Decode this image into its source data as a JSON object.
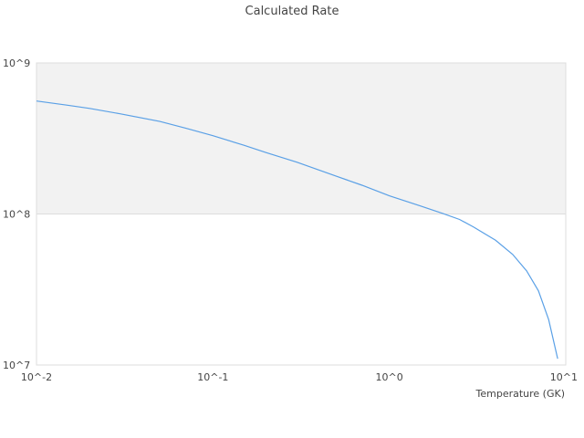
{
  "chart_data": {
    "type": "line",
    "title": "Calculated Rate",
    "xlabel": "Temperature (GK)",
    "ylabel": "",
    "x_scale": "log",
    "y_scale": "log",
    "xlim": [
      0.01,
      10
    ],
    "ylim": [
      10000000,
      1000000000
    ],
    "x_tick_labels": [
      "10^-2",
      "10^-1",
      "10^0",
      "10^1"
    ],
    "y_tick_labels": [
      "10^9",
      "10^8",
      "10^7"
    ],
    "shaded_band": {
      "y_from": 100000000,
      "y_to": 1000000000,
      "color": "#f2f2f2"
    },
    "series": [
      {
        "color": "#5aa0e6",
        "x": [
          0.01,
          0.015,
          0.02,
          0.03,
          0.05,
          0.07,
          0.1,
          0.15,
          0.2,
          0.3,
          0.5,
          0.7,
          1.0,
          1.5,
          2.0,
          2.5,
          3.0,
          4.0,
          5.0,
          6.0,
          7.0,
          8.0,
          9.0
        ],
        "y": [
          560000000,
          525000000,
          500000000,
          460000000,
          410000000,
          370000000,
          330000000,
          285000000,
          255000000,
          220000000,
          178000000,
          155000000,
          132000000,
          113000000,
          101000000,
          92000000,
          82000000,
          67000000,
          54000000,
          42000000,
          31000000,
          20000000,
          11000000
        ]
      }
    ]
  }
}
